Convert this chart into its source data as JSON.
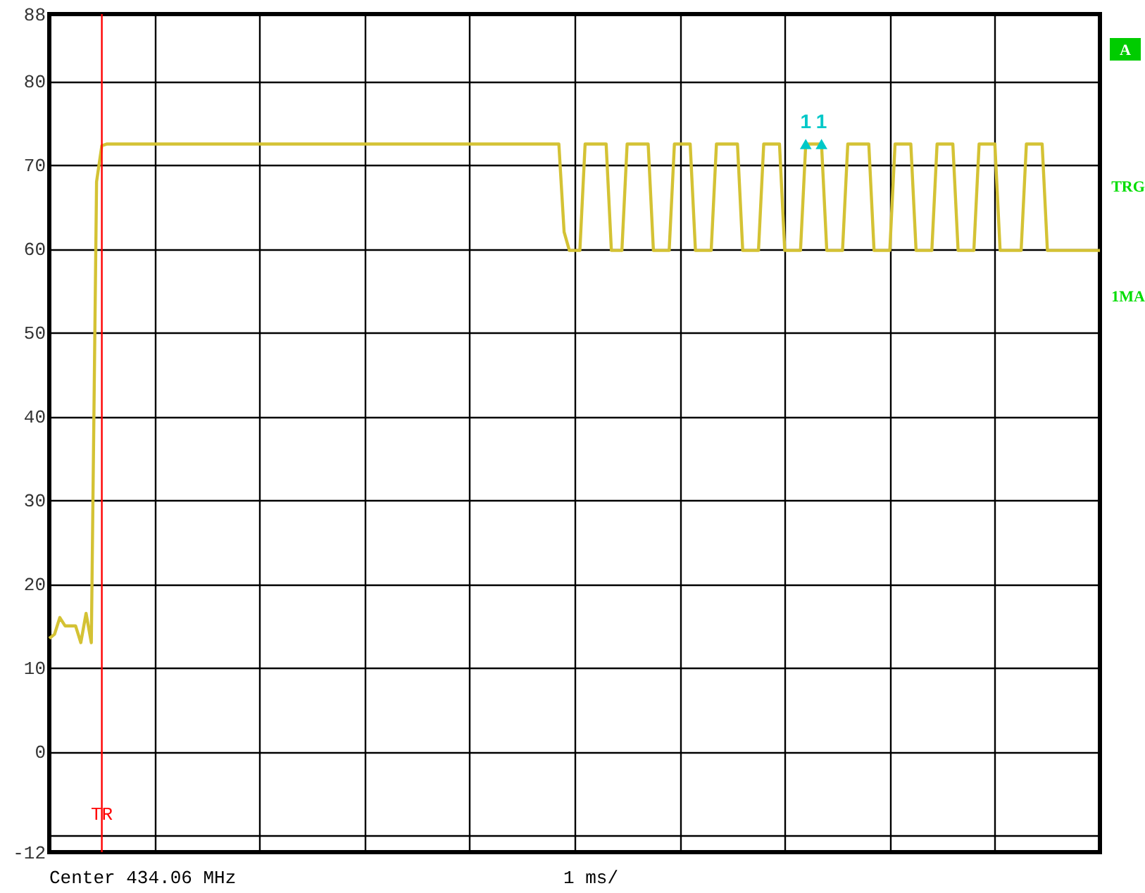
{
  "chart_data": {
    "type": "line",
    "categories": [
      null,
      null,
      null,
      null,
      null,
      null,
      null,
      null,
      null,
      null,
      null,
      null,
      null,
      null,
      null,
      null,
      null,
      null,
      null,
      null,
      null,
      null,
      null,
      null,
      null,
      null,
      null,
      null,
      null,
      null,
      null,
      null,
      null,
      null,
      null,
      null,
      null,
      null,
      null,
      null,
      null,
      null,
      null,
      null,
      null,
      null,
      null,
      null,
      null,
      null,
      null,
      null,
      null,
      null,
      null,
      null,
      null,
      null,
      null,
      null,
      null,
      null,
      null,
      null,
      null,
      null,
      null,
      null,
      null,
      null,
      null,
      null,
      null,
      null,
      null,
      null,
      null,
      null,
      null,
      null,
      null,
      null,
      null,
      null,
      null,
      null,
      null,
      null,
      null,
      null,
      null,
      null,
      null,
      null,
      null,
      null,
      null,
      null,
      null,
      null,
      null,
      null,
      null,
      null,
      null,
      null,
      null,
      null,
      null,
      null,
      null,
      null,
      null,
      null,
      null,
      null,
      null,
      null,
      null,
      null,
      null,
      null,
      null,
      null,
      null,
      null,
      null,
      null,
      null,
      null,
      null,
      null,
      null,
      null,
      null,
      null,
      null,
      null,
      null,
      null,
      null,
      null,
      null,
      null,
      null,
      null,
      null,
      null,
      null,
      null,
      null,
      null,
      null,
      null,
      null,
      null,
      null,
      null,
      null,
      null,
      null,
      null,
      null,
      null,
      null,
      null,
      null,
      null,
      null,
      null,
      null,
      null,
      null,
      null,
      null,
      null,
      null,
      null,
      null,
      null,
      null,
      null,
      null,
      null,
      null,
      null,
      null,
      null,
      null,
      null,
      null,
      null,
      null,
      null,
      null,
      null,
      null,
      null,
      null,
      null,
      null
    ],
    "series": [
      {
        "color": "#d4c234",
        "values": [
          13.5,
          14,
          16,
          15,
          15,
          15,
          13,
          16.5,
          13,
          68,
          72.3,
          72.5,
          72.5,
          72.5,
          72.5,
          72.5,
          72.5,
          72.5,
          72.5,
          72.5,
          72.5,
          72.5,
          72.5,
          72.5,
          72.5,
          72.5,
          72.5,
          72.5,
          72.5,
          72.5,
          72.5,
          72.5,
          72.5,
          72.5,
          72.5,
          72.5,
          72.5,
          72.5,
          72.5,
          72.5,
          72.5,
          72.5,
          72.5,
          72.5,
          72.5,
          72.5,
          72.5,
          72.5,
          72.5,
          72.5,
          72.5,
          72.5,
          72.5,
          72.5,
          72.5,
          72.5,
          72.5,
          72.5,
          72.5,
          72.5,
          72.5,
          72.5,
          72.5,
          72.5,
          72.5,
          72.5,
          72.5,
          72.5,
          72.5,
          72.5,
          72.5,
          72.5,
          72.5,
          72.5,
          72.5,
          72.5,
          72.5,
          72.5,
          72.5,
          72.5,
          72.5,
          72.5,
          72.5,
          72.5,
          72.5,
          72.5,
          72.5,
          72.5,
          72.5,
          72.5,
          72.5,
          72.5,
          72.5,
          72.5,
          72.5,
          72.5,
          72.5,
          72.5,
          62,
          59.8,
          59.8,
          59.8,
          72.5,
          72.5,
          72.5,
          72.5,
          72.5,
          59.8,
          59.8,
          59.8,
          72.5,
          72.5,
          72.5,
          72.5,
          72.5,
          59.8,
          59.8,
          59.8,
          59.8,
          72.5,
          72.5,
          72.5,
          72.5,
          59.8,
          59.8,
          59.8,
          59.8,
          72.5,
          72.5,
          72.5,
          72.5,
          72.5,
          59.8,
          59.8,
          59.8,
          59.8,
          72.5,
          72.5,
          72.5,
          72.5,
          59.8,
          59.8,
          59.8,
          59.8,
          72.5,
          72.5,
          72.5,
          72.5,
          59.8,
          59.8,
          59.8,
          59.8,
          72.5,
          72.5,
          72.5,
          72.5,
          72.5,
          59.8,
          59.8,
          59.8,
          59.8,
          72.5,
          72.5,
          72.5,
          72.5,
          59.8,
          59.8,
          59.8,
          59.8,
          72.5,
          72.5,
          72.5,
          72.5,
          59.8,
          59.8,
          59.8,
          59.8,
          72.5,
          72.5,
          72.5,
          72.5,
          59.8,
          59.8,
          59.8,
          59.8,
          59.8,
          72.5,
          72.5,
          72.5,
          72.5,
          59.8,
          59.8,
          59.8,
          59.8,
          59.8,
          59.8,
          59.8,
          59.8,
          59.8,
          59.8,
          59.8
        ]
      },
      {
        "type": "scatter",
        "color": "#00c8c8",
        "marker": "triangle",
        "values": [
          null,
          null,
          null,
          null,
          null,
          null,
          null,
          null,
          null,
          null,
          null,
          null,
          null,
          null,
          null,
          null,
          null,
          null,
          null,
          null,
          null,
          null,
          null,
          null,
          null,
          null,
          null,
          null,
          null,
          null,
          null,
          null,
          null,
          null,
          null,
          null,
          null,
          null,
          null,
          null,
          null,
          null,
          null,
          null,
          null,
          null,
          null,
          null,
          null,
          null,
          null,
          null,
          null,
          null,
          null,
          null,
          null,
          null,
          null,
          null,
          null,
          null,
          null,
          null,
          null,
          null,
          null,
          null,
          null,
          null,
          null,
          null,
          null,
          null,
          null,
          null,
          null,
          null,
          null,
          null,
          null,
          null,
          null,
          null,
          null,
          null,
          null,
          null,
          null,
          null,
          null,
          null,
          null,
          null,
          null,
          null,
          null,
          null,
          null,
          null,
          null,
          null,
          null,
          null,
          null,
          null,
          null,
          null,
          null,
          null,
          null,
          null,
          null,
          null,
          null,
          null,
          null,
          null,
          null,
          null,
          null,
          null,
          null,
          null,
          null,
          null,
          null,
          null,
          null,
          null,
          null,
          null,
          null,
          null,
          null,
          null,
          null,
          null,
          null,
          null,
          null,
          null,
          null,
          null,
          72.5,
          null,
          null,
          72.5,
          null,
          null,
          null,
          null,
          null,
          null,
          null,
          null,
          null,
          null,
          null,
          null,
          null,
          null,
          null,
          null,
          null,
          null,
          null,
          null,
          null,
          null,
          null,
          null,
          null,
          null,
          null,
          null,
          null,
          null,
          null,
          null,
          null,
          null,
          null,
          null,
          null,
          null,
          null,
          null,
          null,
          null,
          null,
          null,
          null,
          null,
          null,
          null,
          null,
          null,
          null,
          null,
          null
        ]
      }
    ],
    "annotations": [
      "Center 434.06 MHz",
      "1 ms/",
      "A",
      "TRG",
      "1MA",
      "TR",
      "1",
      "1"
    ],
    "ylim": [
      -12,
      88
    ],
    "yticks": [
      88,
      80,
      70,
      60,
      50,
      40,
      30,
      20,
      10,
      0,
      {
        "value": -10,
        "label": null
      },
      -12
    ],
    "tick_labels": "y",
    "grid": true,
    "marker": "none",
    "line_style": "solid"
  }
}
